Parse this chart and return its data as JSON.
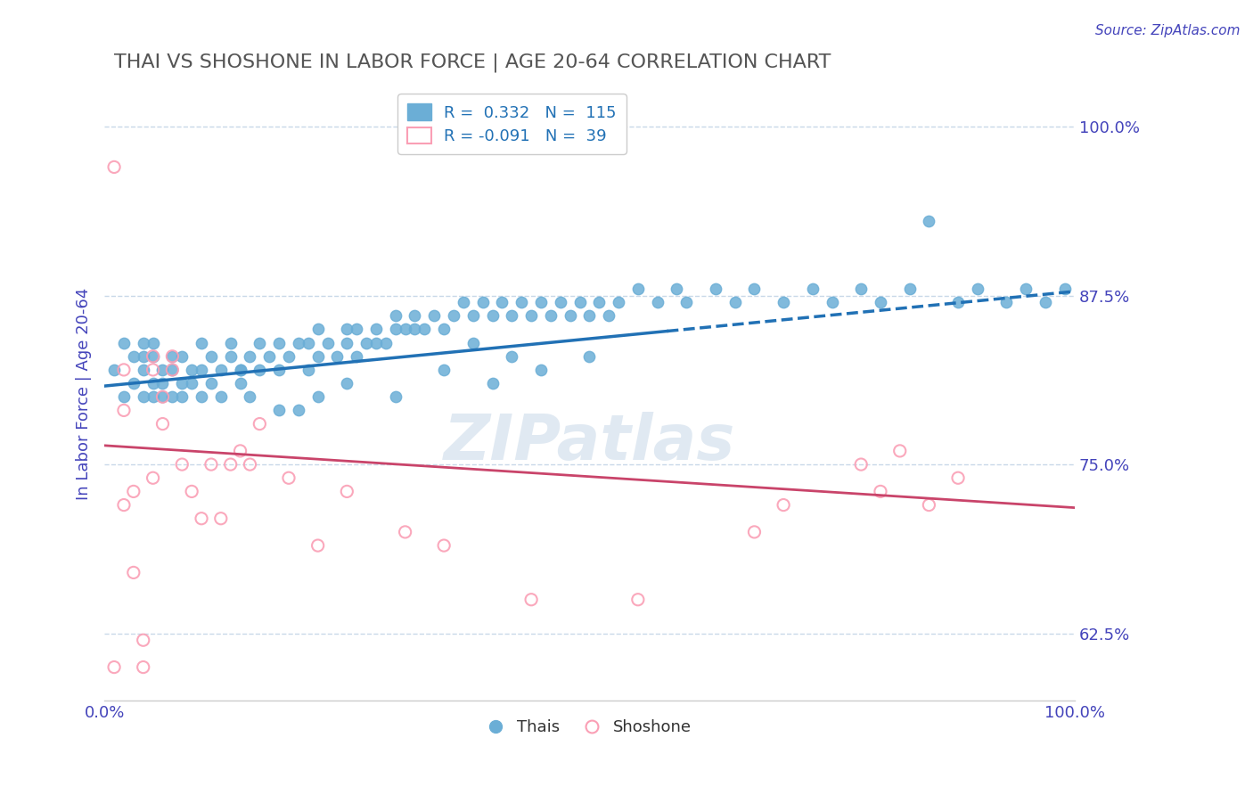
{
  "title": "THAI VS SHOSHONE IN LABOR FORCE | AGE 20-64 CORRELATION CHART",
  "source_text": "Source: ZipAtlas.com",
  "xlabel": "",
  "ylabel": "In Labor Force | Age 20-64",
  "xmin": 0.0,
  "xmax": 1.0,
  "ymin": 0.575,
  "ymax": 1.03,
  "yticks": [
    0.625,
    0.75,
    0.875,
    1.0
  ],
  "ytick_labels": [
    "62.5%",
    "75.0%",
    "87.5%",
    "100.0%"
  ],
  "xticks": [
    0.0,
    0.1,
    0.2,
    0.3,
    0.4,
    0.5,
    0.6,
    0.7,
    0.8,
    0.9,
    1.0
  ],
  "xtick_labels": [
    "0.0%",
    "",
    "",
    "",
    "",
    "",
    "",
    "",
    "",
    "",
    "100.0%"
  ],
  "blue_R": 0.332,
  "blue_N": 115,
  "pink_R": -0.091,
  "pink_N": 39,
  "blue_color": "#6baed6",
  "pink_color": "#fa9fb5",
  "blue_line_color": "#2171b5",
  "pink_line_color": "#c9446a",
  "grid_color": "#c8d8e8",
  "title_color": "#555555",
  "axis_label_color": "#4444bb",
  "background_color": "#ffffff",
  "watermark_text": "ZIPatlas",
  "legend_R_color": "#2171b5",
  "blue_x": [
    0.01,
    0.02,
    0.02,
    0.03,
    0.03,
    0.04,
    0.04,
    0.04,
    0.04,
    0.05,
    0.05,
    0.05,
    0.05,
    0.06,
    0.06,
    0.06,
    0.07,
    0.07,
    0.07,
    0.08,
    0.08,
    0.08,
    0.09,
    0.09,
    0.1,
    0.1,
    0.1,
    0.11,
    0.11,
    0.12,
    0.12,
    0.13,
    0.13,
    0.14,
    0.14,
    0.15,
    0.15,
    0.16,
    0.16,
    0.17,
    0.18,
    0.18,
    0.19,
    0.2,
    0.21,
    0.21,
    0.22,
    0.22,
    0.23,
    0.24,
    0.25,
    0.25,
    0.26,
    0.27,
    0.28,
    0.29,
    0.3,
    0.3,
    0.31,
    0.32,
    0.33,
    0.34,
    0.35,
    0.36,
    0.37,
    0.38,
    0.39,
    0.4,
    0.41,
    0.42,
    0.43,
    0.44,
    0.45,
    0.46,
    0.47,
    0.48,
    0.49,
    0.5,
    0.51,
    0.52,
    0.53,
    0.55,
    0.57,
    0.59,
    0.6,
    0.63,
    0.65,
    0.67,
    0.7,
    0.73,
    0.75,
    0.78,
    0.8,
    0.83,
    0.85,
    0.88,
    0.9,
    0.93,
    0.95,
    0.97,
    0.99,
    0.2,
    0.25,
    0.3,
    0.35,
    0.4,
    0.45,
    0.5,
    0.26,
    0.28,
    0.32,
    0.18,
    0.22,
    0.14,
    0.38,
    0.42
  ],
  "blue_y": [
    0.82,
    0.8,
    0.84,
    0.81,
    0.83,
    0.82,
    0.8,
    0.84,
    0.83,
    0.81,
    0.8,
    0.83,
    0.84,
    0.8,
    0.82,
    0.81,
    0.82,
    0.8,
    0.83,
    0.81,
    0.83,
    0.8,
    0.82,
    0.81,
    0.82,
    0.8,
    0.84,
    0.81,
    0.83,
    0.82,
    0.8,
    0.83,
    0.84,
    0.82,
    0.81,
    0.83,
    0.8,
    0.84,
    0.82,
    0.83,
    0.82,
    0.84,
    0.83,
    0.84,
    0.82,
    0.84,
    0.83,
    0.85,
    0.84,
    0.83,
    0.85,
    0.84,
    0.85,
    0.84,
    0.85,
    0.84,
    0.86,
    0.85,
    0.85,
    0.86,
    0.85,
    0.86,
    0.85,
    0.86,
    0.87,
    0.86,
    0.87,
    0.86,
    0.87,
    0.86,
    0.87,
    0.86,
    0.87,
    0.86,
    0.87,
    0.86,
    0.87,
    0.86,
    0.87,
    0.86,
    0.87,
    0.88,
    0.87,
    0.88,
    0.87,
    0.88,
    0.87,
    0.88,
    0.87,
    0.88,
    0.87,
    0.88,
    0.87,
    0.88,
    0.93,
    0.87,
    0.88,
    0.87,
    0.88,
    0.87,
    0.88,
    0.79,
    0.81,
    0.8,
    0.82,
    0.81,
    0.82,
    0.83,
    0.83,
    0.84,
    0.85,
    0.79,
    0.8,
    0.82,
    0.84,
    0.83
  ],
  "pink_x": [
    0.01,
    0.01,
    0.02,
    0.02,
    0.02,
    0.03,
    0.03,
    0.04,
    0.04,
    0.05,
    0.05,
    0.05,
    0.06,
    0.06,
    0.07,
    0.07,
    0.08,
    0.09,
    0.1,
    0.11,
    0.12,
    0.13,
    0.14,
    0.15,
    0.16,
    0.19,
    0.22,
    0.25,
    0.31,
    0.35,
    0.44,
    0.55,
    0.67,
    0.7,
    0.78,
    0.8,
    0.82,
    0.85,
    0.88
  ],
  "pink_y": [
    0.97,
    0.6,
    0.82,
    0.79,
    0.72,
    0.73,
    0.67,
    0.62,
    0.6,
    0.83,
    0.82,
    0.74,
    0.8,
    0.78,
    0.82,
    0.83,
    0.75,
    0.73,
    0.71,
    0.75,
    0.71,
    0.75,
    0.76,
    0.75,
    0.78,
    0.74,
    0.69,
    0.73,
    0.7,
    0.69,
    0.65,
    0.65,
    0.7,
    0.72,
    0.75,
    0.73,
    0.76,
    0.72,
    0.74
  ],
  "blue_trend_x0": 0.0,
  "blue_trend_x1": 1.0,
  "blue_trend_y0": 0.808,
  "blue_trend_y1": 0.878,
  "pink_trend_x0": 0.0,
  "pink_trend_x1": 1.0,
  "pink_trend_y0": 0.764,
  "pink_trend_y1": 0.718,
  "blue_trend_solid_end": 0.58
}
